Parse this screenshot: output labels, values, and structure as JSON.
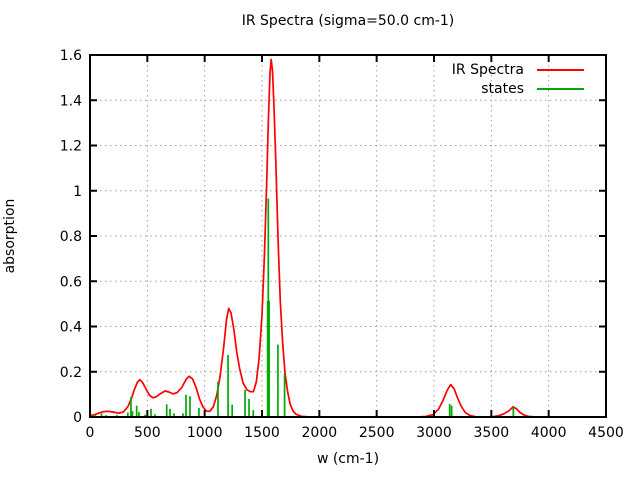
{
  "chart_data": {
    "type": "line",
    "title": "IR Spectra (sigma=50.0 cm-1)",
    "xlabel": "w (cm-1)",
    "ylabel": "absorption",
    "xlim": [
      0,
      4500
    ],
    "ylim": [
      0,
      1.6
    ],
    "grid": true,
    "legend_position": "top-right-inside",
    "x_ticks": [
      {
        "v": 0,
        "label": "0"
      },
      {
        "v": 500,
        "label": "500"
      },
      {
        "v": 1000,
        "label": "1000"
      },
      {
        "v": 1500,
        "label": "1500"
      },
      {
        "v": 2000,
        "label": "2000"
      },
      {
        "v": 2500,
        "label": "2500"
      },
      {
        "v": 3000,
        "label": "3000"
      },
      {
        "v": 3500,
        "label": "3500"
      },
      {
        "v": 4000,
        "label": "4000"
      },
      {
        "v": 4500,
        "label": "4500"
      }
    ],
    "y_ticks": [
      {
        "v": 0,
        "label": "0"
      },
      {
        "v": 0.2,
        "label": "0.2"
      },
      {
        "v": 0.4,
        "label": "0.4"
      },
      {
        "v": 0.6,
        "label": "0.6"
      },
      {
        "v": 0.8,
        "label": "0.8"
      },
      {
        "v": 1.0,
        "label": "1"
      },
      {
        "v": 1.2,
        "label": "1.2"
      },
      {
        "v": 1.4,
        "label": "1.4"
      },
      {
        "v": 1.6,
        "label": "1.6"
      }
    ],
    "series": [
      {
        "name": "IR Spectra",
        "type": "line",
        "color": "#ff0000",
        "points": [
          [
            0,
            0.006
          ],
          [
            40,
            0.01
          ],
          [
            80,
            0.018
          ],
          [
            120,
            0.024
          ],
          [
            160,
            0.025
          ],
          [
            200,
            0.022
          ],
          [
            250,
            0.017
          ],
          [
            290,
            0.022
          ],
          [
            330,
            0.045
          ],
          [
            360,
            0.08
          ],
          [
            390,
            0.125
          ],
          [
            415,
            0.155
          ],
          [
            435,
            0.165
          ],
          [
            460,
            0.152
          ],
          [
            490,
            0.122
          ],
          [
            520,
            0.095
          ],
          [
            550,
            0.085
          ],
          [
            580,
            0.09
          ],
          [
            620,
            0.105
          ],
          [
            655,
            0.115
          ],
          [
            690,
            0.11
          ],
          [
            725,
            0.102
          ],
          [
            760,
            0.108
          ],
          [
            800,
            0.13
          ],
          [
            840,
            0.168
          ],
          [
            865,
            0.18
          ],
          [
            895,
            0.168
          ],
          [
            925,
            0.13
          ],
          [
            955,
            0.08
          ],
          [
            985,
            0.045
          ],
          [
            1015,
            0.026
          ],
          [
            1045,
            0.025
          ],
          [
            1075,
            0.045
          ],
          [
            1105,
            0.095
          ],
          [
            1135,
            0.18
          ],
          [
            1165,
            0.305
          ],
          [
            1190,
            0.43
          ],
          [
            1210,
            0.48
          ],
          [
            1230,
            0.46
          ],
          [
            1255,
            0.385
          ],
          [
            1280,
            0.285
          ],
          [
            1305,
            0.215
          ],
          [
            1335,
            0.15
          ],
          [
            1370,
            0.12
          ],
          [
            1400,
            0.112
          ],
          [
            1425,
            0.112
          ],
          [
            1450,
            0.155
          ],
          [
            1475,
            0.26
          ],
          [
            1500,
            0.45
          ],
          [
            1520,
            0.7
          ],
          [
            1540,
            1.02
          ],
          [
            1555,
            1.3
          ],
          [
            1570,
            1.52
          ],
          [
            1580,
            1.58
          ],
          [
            1592,
            1.53
          ],
          [
            1605,
            1.37
          ],
          [
            1620,
            1.13
          ],
          [
            1640,
            0.78
          ],
          [
            1660,
            0.51
          ],
          [
            1680,
            0.33
          ],
          [
            1700,
            0.2
          ],
          [
            1722,
            0.115
          ],
          [
            1745,
            0.058
          ],
          [
            1770,
            0.026
          ],
          [
            1800,
            0.011
          ],
          [
            1845,
            0.003
          ],
          [
            1900,
            0.001
          ],
          [
            2000,
            0
          ],
          [
            2850,
            0
          ],
          [
            2930,
            0.002
          ],
          [
            2990,
            0.01
          ],
          [
            3040,
            0.035
          ],
          [
            3080,
            0.075
          ],
          [
            3115,
            0.118
          ],
          [
            3145,
            0.143
          ],
          [
            3175,
            0.125
          ],
          [
            3205,
            0.085
          ],
          [
            3240,
            0.045
          ],
          [
            3275,
            0.019
          ],
          [
            3315,
            0.006
          ],
          [
            3370,
            0.001
          ],
          [
            3430,
            0
          ],
          [
            3500,
            0.001
          ],
          [
            3560,
            0.005
          ],
          [
            3610,
            0.014
          ],
          [
            3655,
            0.028
          ],
          [
            3690,
            0.045
          ],
          [
            3720,
            0.036
          ],
          [
            3750,
            0.02
          ],
          [
            3785,
            0.009
          ],
          [
            3820,
            0.003
          ],
          [
            3870,
            0.001
          ],
          [
            3950,
            0
          ],
          [
            4200,
            0
          ],
          [
            4500,
            0
          ]
        ]
      },
      {
        "name": "states",
        "type": "impulses",
        "color": "#00aa00",
        "points": [
          [
            45,
            0.01
          ],
          [
            100,
            0.016
          ],
          [
            140,
            0.008
          ],
          [
            235,
            0.008
          ],
          [
            330,
            0.02
          ],
          [
            357,
            0.088
          ],
          [
            370,
            0.026
          ],
          [
            407,
            0.05
          ],
          [
            427,
            0.022
          ],
          [
            480,
            0.01
          ],
          [
            532,
            0.036
          ],
          [
            567,
            0.012
          ],
          [
            669,
            0.056
          ],
          [
            698,
            0.036
          ],
          [
            732,
            0.016
          ],
          [
            811,
            0.016
          ],
          [
            837,
            0.098
          ],
          [
            872,
            0.092
          ],
          [
            950,
            0.04
          ],
          [
            1116,
            0.156
          ],
          [
            1204,
            0.274
          ],
          [
            1240,
            0.054
          ],
          [
            1352,
            0.12
          ],
          [
            1387,
            0.08
          ],
          [
            1424,
            0.03
          ],
          [
            1549,
            0.513
          ],
          [
            1555,
            0.965
          ],
          [
            1562,
            0.513
          ],
          [
            1639,
            0.32
          ],
          [
            1697,
            0.193
          ],
          [
            3137,
            0.058
          ],
          [
            3154,
            0.05
          ],
          [
            3692,
            0.042
          ]
        ]
      }
    ]
  },
  "colors": {
    "background": "#ffffff",
    "border": "#000000",
    "grid": "#a0a0a0",
    "text": "#000000"
  }
}
